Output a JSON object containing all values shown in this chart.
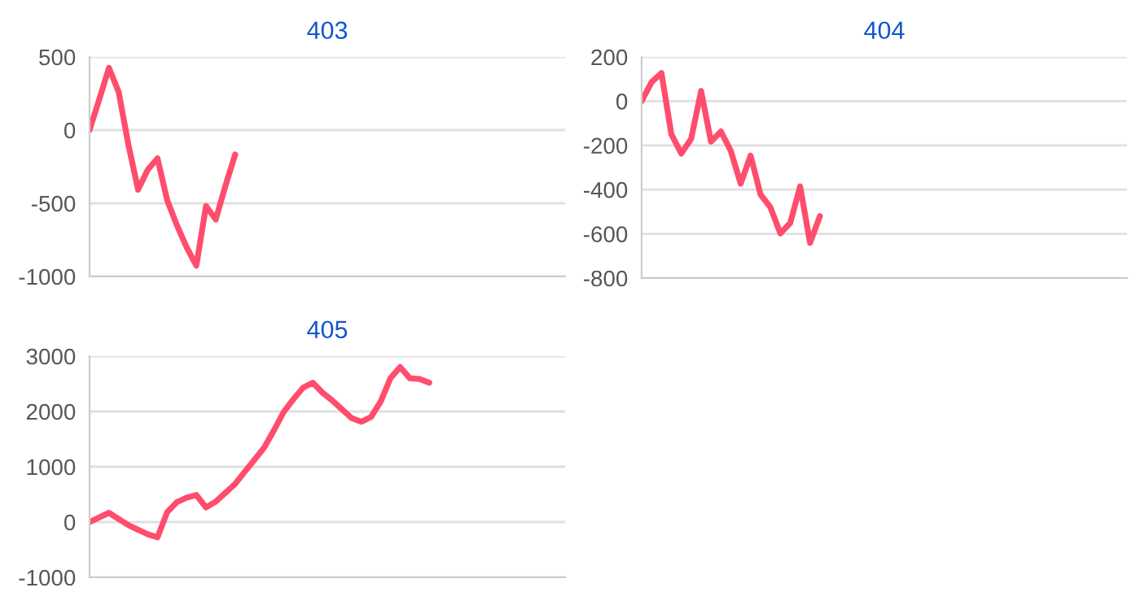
{
  "chart_data": [
    {
      "type": "line",
      "title": "403",
      "categories": [
        null,
        null,
        null,
        null,
        null,
        null,
        null,
        null,
        null,
        null,
        null,
        null,
        null,
        null,
        null,
        null,
        null,
        null,
        null,
        null,
        null,
        null,
        null,
        null,
        null,
        null,
        null,
        null,
        null,
        null,
        null,
        null,
        null,
        null,
        null,
        null,
        null,
        null,
        null,
        null,
        null,
        null,
        null,
        null,
        null,
        null,
        null,
        null,
        null,
        null
      ],
      "series": [
        {
          "color": "#ff4d6d",
          "values": [
            0,
            210,
            425,
            260,
            -100,
            -407,
            -270,
            -193,
            -480,
            -650,
            -800,
            -926,
            -519,
            -611,
            -380,
            -167,
            null,
            null,
            null,
            null,
            null,
            null,
            null,
            null,
            null,
            null,
            null,
            null,
            null,
            null,
            null,
            null,
            null,
            null,
            null,
            null,
            null,
            null,
            null,
            null,
            null,
            null,
            null,
            null,
            null,
            null,
            null,
            null,
            null,
            null
          ]
        }
      ],
      "ylim": [
        -1000,
        500
      ],
      "yticks": [
        -1000,
        -500,
        0,
        500
      ],
      "grid": "y",
      "tick_labels": "y"
    },
    {
      "type": "line",
      "title": "404",
      "categories": [
        null,
        null,
        null,
        null,
        null,
        null,
        null,
        null,
        null,
        null,
        null,
        null,
        null,
        null,
        null,
        null,
        null,
        null,
        null,
        null,
        null,
        null,
        null,
        null,
        null,
        null,
        null,
        null,
        null,
        null,
        null,
        null,
        null,
        null,
        null,
        null,
        null,
        null,
        null,
        null,
        null,
        null,
        null,
        null,
        null,
        null,
        null,
        null,
        null,
        null
      ],
      "series": [
        {
          "color": "#ff4d6d",
          "values": [
            0,
            86,
            127,
            -150,
            -237,
            -170,
            46,
            -183,
            -137,
            -225,
            -373,
            -246,
            -422,
            -480,
            -598,
            -551,
            -385,
            -641,
            -520,
            null,
            null,
            null,
            null,
            null,
            null,
            null,
            null,
            null,
            null,
            null,
            null,
            null,
            null,
            null,
            null,
            null,
            null,
            null,
            null,
            null,
            null,
            null,
            null,
            null,
            null,
            null,
            null,
            null,
            null,
            null
          ]
        }
      ],
      "ylim": [
        -800,
        200
      ],
      "yticks": [
        -800,
        -600,
        -400,
        -200,
        0,
        200
      ],
      "grid": "y",
      "tick_labels": "y"
    },
    {
      "type": "line",
      "title": "405",
      "categories": [
        null,
        null,
        null,
        null,
        null,
        null,
        null,
        null,
        null,
        null,
        null,
        null,
        null,
        null,
        null,
        null,
        null,
        null,
        null,
        null,
        null,
        null,
        null,
        null,
        null,
        null,
        null,
        null,
        null,
        null,
        null,
        null,
        null,
        null,
        null,
        null,
        null,
        null,
        null,
        null,
        null,
        null,
        null,
        null,
        null,
        null,
        null,
        null,
        null,
        null
      ],
      "series": [
        {
          "color": "#ff4d6d",
          "values": [
            0,
            85,
            167,
            55,
            -55,
            -140,
            -220,
            -275,
            180,
            360,
            440,
            490,
            265,
            370,
            530,
            690,
            910,
            1130,
            1350,
            1660,
            1990,
            2220,
            2430,
            2520,
            2340,
            2200,
            2040,
            1880,
            1814,
            1900,
            2180,
            2600,
            2804,
            2600,
            2588,
            2520,
            null,
            null,
            null,
            null,
            null,
            null,
            null,
            null,
            null,
            null,
            null,
            null,
            null,
            null
          ]
        }
      ],
      "ylim": [
        -1000,
        3000
      ],
      "yticks": [
        -1000,
        0,
        1000,
        2000,
        3000
      ],
      "grid": "y",
      "tick_labels": "y"
    }
  ]
}
